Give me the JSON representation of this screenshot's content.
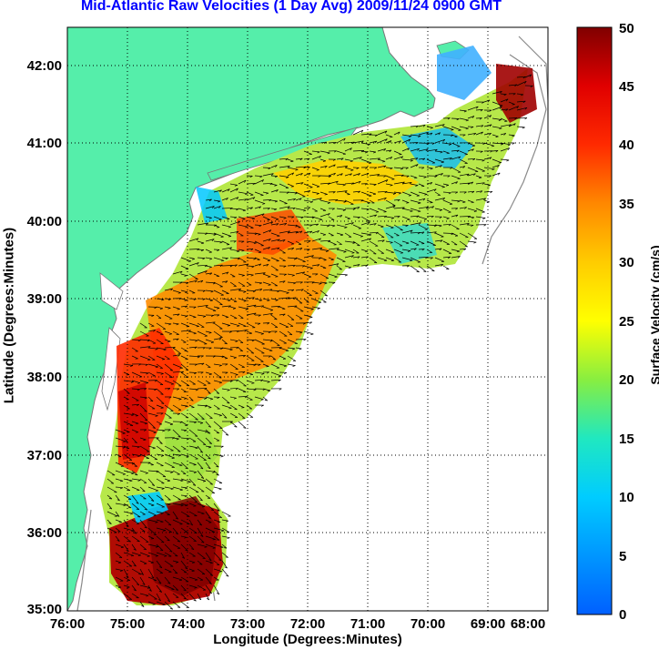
{
  "title": "Mid-Atlantic Raw Velocities (1 Day Avg) 2009/11/24 0900 GMT",
  "xlabel": "Longitude (Degrees:Minutes)",
  "ylabel": "Latitude (Degrees:Minutes)",
  "colorbar": {
    "label": "Surface Velocity (cm/s)",
    "ticks": [
      "0",
      "5",
      "10",
      "15",
      "20",
      "25",
      "30",
      "35",
      "40",
      "45",
      "50"
    ]
  },
  "axes": {
    "x_ticks": [
      "76:00",
      "75:00",
      "74:00",
      "73:00",
      "72:00",
      "71:00",
      "70:00",
      "69:00",
      "68:00"
    ],
    "y_ticks": [
      "42:00",
      "41:00",
      "40:00",
      "39:00",
      "38:00",
      "37:00",
      "36:00",
      "35:00"
    ],
    "grid": "dotted"
  },
  "colors": {
    "land": "#55eeaa",
    "title": "#0000ff",
    "coast": "#9a9a9a",
    "vector": "#000000"
  },
  "legend_placement": "right colorbar"
}
